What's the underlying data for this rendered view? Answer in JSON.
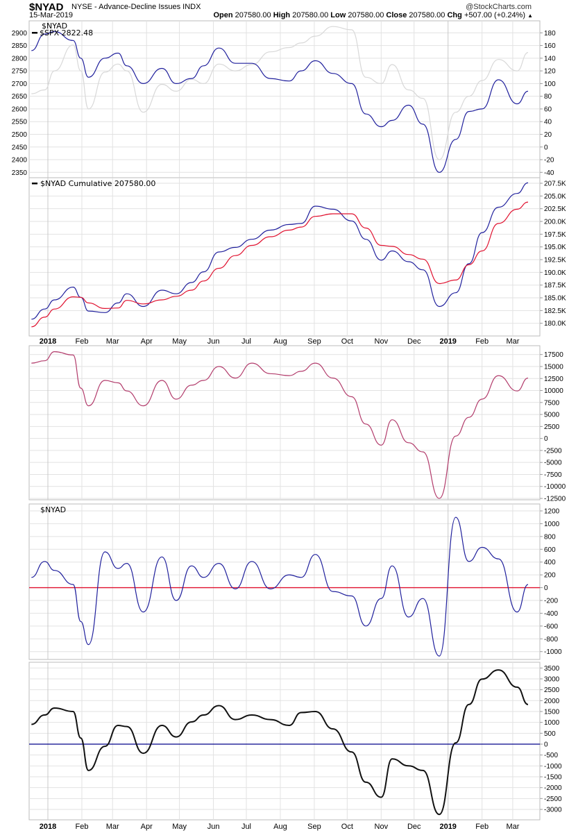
{
  "header": {
    "symbol": "$NYAD",
    "description": "NYSE - Advance-Decline Issues INDX",
    "date": "15-Mar-2019",
    "brand": "@StockCharts.com",
    "open_label": "Open",
    "open": "207580.00",
    "high_label": "High",
    "high": "207580.00",
    "low_label": "Low",
    "low": "207580.00",
    "close_label": "Close",
    "close": "207580.00",
    "chg_label": "Chg",
    "chg": "+507.00 (+0.24%)",
    "chg_icon": "triangle-up-icon"
  },
  "x_axis": {
    "months": [
      {
        "label": "2018",
        "date": "2018-01-01",
        "bold": true
      },
      {
        "label": "Feb",
        "date": "2018-02-01"
      },
      {
        "label": "Mar",
        "date": "2018-03-01"
      },
      {
        "label": "Apr",
        "date": "2018-04-01"
      },
      {
        "label": "May",
        "date": "2018-05-01"
      },
      {
        "label": "Jun",
        "date": "2018-06-01"
      },
      {
        "label": "Jul",
        "date": "2018-07-01"
      },
      {
        "label": "Aug",
        "date": "2018-08-01"
      },
      {
        "label": "Sep",
        "date": "2018-09-01"
      },
      {
        "label": "Oct",
        "date": "2018-10-01"
      },
      {
        "label": "Nov",
        "date": "2018-11-01"
      },
      {
        "label": "Dec",
        "date": "2018-12-01"
      },
      {
        "label": "2019",
        "date": "2019-01-01",
        "bold": true
      },
      {
        "label": "Feb",
        "date": "2019-02-01"
      },
      {
        "label": "Mar",
        "date": "2019-03-01"
      }
    ]
  },
  "chart_data": [
    {
      "type": "line",
      "legend": [
        "$NYAD",
        "$SPX 2822.48"
      ],
      "x": [
        "2017-12-17",
        "2017-12-29",
        "2018-01-07",
        "2018-01-24",
        "2018-01-31",
        "2018-02-07",
        "2018-02-22",
        "2018-03-06",
        "2018-03-14",
        "2018-03-29",
        "2018-04-15",
        "2018-04-28",
        "2018-05-12",
        "2018-05-23",
        "2018-06-06",
        "2018-06-21",
        "2018-07-06",
        "2018-07-23",
        "2018-08-09",
        "2018-08-20",
        "2018-09-02",
        "2018-09-18",
        "2018-10-05",
        "2018-10-18",
        "2018-11-01",
        "2018-11-11",
        "2018-11-26",
        "2018-12-09",
        "2018-12-24",
        "2019-01-08",
        "2019-01-20",
        "2019-02-01",
        "2019-02-16",
        "2019-03-05",
        "2019-03-15"
      ],
      "series": [
        {
          "name": "$SPX",
          "axis": "left",
          "color": "#d8d8d8",
          "values": [
            2660,
            2675,
            2750,
            2852,
            2750,
            2600,
            2745,
            2777,
            2750,
            2587,
            2697,
            2670,
            2717,
            2700,
            2777,
            2750,
            2775,
            2825,
            2842,
            2860,
            2887,
            2925,
            2912,
            2725,
            2700,
            2775,
            2675,
            2642,
            2400,
            2587,
            2650,
            2712,
            2795,
            2750,
            2822.48
          ]
        },
        {
          "name": "$NYAD",
          "axis": "right",
          "color": "#1f1f9c",
          "values": [
            152,
            178,
            182,
            168,
            140,
            110,
            140,
            148,
            128,
            100,
            124,
            100,
            108,
            128,
            156,
            132,
            132,
            108,
            104,
            120,
            136,
            116,
            100,
            52,
            32,
            42,
            66,
            36,
            -40,
            12,
            56,
            60,
            106,
            68,
            88
          ]
        }
      ],
      "y_left": {
        "range": [
          2335,
          2915
        ],
        "ticks": [
          "2350",
          "2400",
          "2450",
          "2500",
          "2550",
          "2600",
          "2650",
          "2700",
          "2750",
          "2800",
          "2850",
          "2900"
        ]
      },
      "y_right": {
        "range": [
          -46,
          186
        ],
        "ticks": [
          "-40",
          "-20",
          "0",
          "20",
          "40",
          "60",
          "80",
          "100",
          "120",
          "140",
          "160",
          "180"
        ]
      }
    },
    {
      "type": "line",
      "legend": [
        "$NYAD Cumulative 207580.00"
      ],
      "x": [
        "2017-12-17",
        "2017-12-29",
        "2018-01-07",
        "2018-01-24",
        "2018-01-31",
        "2018-02-07",
        "2018-02-22",
        "2018-03-06",
        "2018-03-14",
        "2018-03-29",
        "2018-04-15",
        "2018-04-28",
        "2018-05-12",
        "2018-05-23",
        "2018-06-06",
        "2018-06-21",
        "2018-07-06",
        "2018-07-23",
        "2018-08-09",
        "2018-08-20",
        "2018-09-02",
        "2018-09-18",
        "2018-10-05",
        "2018-10-18",
        "2018-11-01",
        "2018-11-11",
        "2018-11-26",
        "2018-12-09",
        "2018-12-24",
        "2019-01-08",
        "2019-01-20",
        "2019-02-01",
        "2019-02-16",
        "2019-03-05",
        "2019-03-15"
      ],
      "series": [
        {
          "name": "$NYAD Cumulative",
          "color": "#1f1f9c",
          "values": [
            180800,
            182800,
            184600,
            187100,
            185100,
            182400,
            182100,
            184000,
            185800,
            183300,
            186500,
            185800,
            188000,
            190100,
            194000,
            194900,
            196500,
            198300,
            199400,
            199600,
            203000,
            202400,
            200100,
            196500,
            192400,
            194200,
            192100,
            190500,
            183300,
            186000,
            191700,
            197800,
            202800,
            205500,
            207580
          ]
        },
        {
          "color": "#e0102e",
          "values": [
            179300,
            181200,
            182800,
            185200,
            185100,
            184000,
            182900,
            183000,
            184500,
            183800,
            184600,
            185300,
            186500,
            188300,
            190800,
            193300,
            195300,
            197000,
            198300,
            198900,
            201000,
            201500,
            201500,
            198700,
            195300,
            195100,
            193500,
            192600,
            187800,
            188500,
            191500,
            194200,
            199600,
            202400,
            203800
          ]
        }
      ],
      "y_right": {
        "range": [
          177800,
          208400
        ],
        "ticks": [
          "180.0K",
          "182.5K",
          "185.0K",
          "187.5K",
          "190.0K",
          "192.5K",
          "195.0K",
          "197.5K",
          "200.0K",
          "202.5K",
          "205.0K",
          "207.5K"
        ]
      }
    },
    {
      "type": "line",
      "x": [
        "2017-12-17",
        "2017-12-29",
        "2018-01-07",
        "2018-01-24",
        "2018-01-31",
        "2018-02-07",
        "2018-02-22",
        "2018-03-06",
        "2018-03-14",
        "2018-03-29",
        "2018-04-15",
        "2018-04-28",
        "2018-05-12",
        "2018-05-23",
        "2018-06-06",
        "2018-06-21",
        "2018-07-06",
        "2018-07-23",
        "2018-08-09",
        "2018-08-20",
        "2018-09-02",
        "2018-09-18",
        "2018-10-05",
        "2018-10-18",
        "2018-11-01",
        "2018-11-11",
        "2018-11-26",
        "2018-12-09",
        "2018-12-24",
        "2019-01-08",
        "2019-01-20",
        "2019-02-01",
        "2019-02-16",
        "2019-03-05",
        "2019-03-15"
      ],
      "series": [
        {
          "color": "#b23b6b",
          "values": [
            15700,
            16200,
            18100,
            17400,
            10500,
            6800,
            12100,
            11600,
            9900,
            6800,
            12100,
            8200,
            11100,
            12100,
            15000,
            12600,
            15700,
            13500,
            13100,
            14000,
            15700,
            12600,
            8700,
            3000,
            -1400,
            3900,
            -900,
            -2800,
            -12500,
            500,
            4400,
            8200,
            13100,
            9900,
            12600
          ]
        }
      ],
      "y_right": {
        "range": [
          -13000,
          19300
        ],
        "ticks": [
          "-12500",
          "-10000",
          "-7500",
          "-5000",
          "-2500",
          "0",
          "2500",
          "5000",
          "7500",
          "10000",
          "12500",
          "15000",
          "17500"
        ]
      }
    },
    {
      "type": "line",
      "legend": [
        "$NYAD"
      ],
      "x": [
        "2017-12-17",
        "2017-12-29",
        "2018-01-07",
        "2018-01-24",
        "2018-01-31",
        "2018-02-07",
        "2018-02-22",
        "2018-03-06",
        "2018-03-14",
        "2018-03-29",
        "2018-04-15",
        "2018-04-28",
        "2018-05-12",
        "2018-05-23",
        "2018-06-06",
        "2018-06-21",
        "2018-07-06",
        "2018-07-23",
        "2018-08-09",
        "2018-08-20",
        "2018-09-02",
        "2018-09-18",
        "2018-10-05",
        "2018-10-18",
        "2018-11-01",
        "2018-11-11",
        "2018-11-26",
        "2018-12-09",
        "2018-12-24",
        "2019-01-08",
        "2019-01-20",
        "2019-02-01",
        "2019-02-16",
        "2019-03-05",
        "2019-03-15"
      ],
      "series": [
        {
          "color": "#1f1f9c",
          "values": [
            160,
            410,
            270,
            50,
            -530,
            -890,
            560,
            300,
            380,
            -380,
            480,
            -200,
            340,
            160,
            380,
            -20,
            410,
            -20,
            200,
            160,
            520,
            -60,
            -130,
            -600,
            -170,
            340,
            -460,
            -170,
            -1070,
            1100,
            410,
            630,
            450,
            -380,
            50
          ]
        }
      ],
      "reference_line": {
        "value": 0,
        "color": "#e0102e"
      },
      "y_right": {
        "range": [
          -1100,
          1290
        ],
        "ticks": [
          "-1000",
          "-800",
          "-600",
          "-400",
          "-200",
          "0",
          "200",
          "400",
          "600",
          "800",
          "1000",
          "1200"
        ]
      }
    },
    {
      "type": "line",
      "x": [
        "2017-12-17",
        "2017-12-29",
        "2018-01-07",
        "2018-01-24",
        "2018-01-31",
        "2018-02-07",
        "2018-02-22",
        "2018-03-06",
        "2018-03-14",
        "2018-03-29",
        "2018-04-15",
        "2018-04-28",
        "2018-05-12",
        "2018-05-23",
        "2018-06-06",
        "2018-06-21",
        "2018-07-06",
        "2018-07-23",
        "2018-08-09",
        "2018-08-20",
        "2018-09-02",
        "2018-09-18",
        "2018-10-05",
        "2018-10-18",
        "2018-11-01",
        "2018-11-11",
        "2018-11-26",
        "2018-12-09",
        "2018-12-24",
        "2019-01-08",
        "2019-01-20",
        "2019-02-01",
        "2019-02-16",
        "2019-03-05",
        "2019-03-15"
      ],
      "series": [
        {
          "color": "#111111",
          "values": [
            910,
            1340,
            1660,
            1500,
            280,
            -1210,
            -100,
            860,
            810,
            -420,
            860,
            330,
            1020,
            1340,
            1770,
            1130,
            1340,
            1130,
            860,
            1450,
            1500,
            700,
            -360,
            -1750,
            -2440,
            -680,
            -1000,
            -1210,
            -3230,
            60,
            1820,
            2990,
            3410,
            2620,
            1820
          ]
        }
      ],
      "reference_line": {
        "value": 0,
        "color": "#00008b"
      },
      "y_right": {
        "range": [
          -3650,
          3750
        ],
        "ticks": [
          "-3000",
          "-2500",
          "-2000",
          "-1500",
          "-1000",
          "-500",
          "0",
          "500",
          "1000",
          "1500",
          "2000",
          "2500",
          "3000",
          "3500"
        ]
      }
    }
  ]
}
